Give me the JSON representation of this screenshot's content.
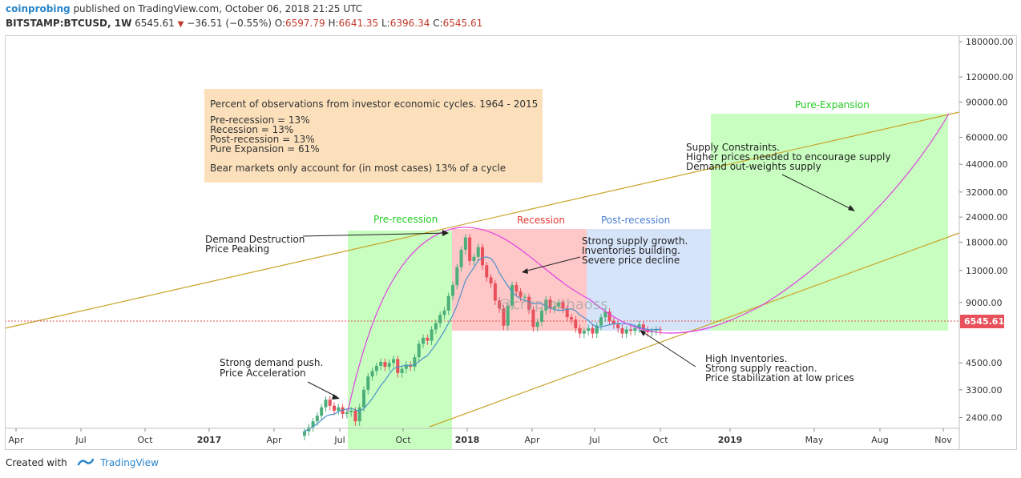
{
  "header": {
    "author": "coinprobing",
    "published": "published on TradingView.com, October 06, 2018 21:25 UTC",
    "symbol": "BITSTAMP:BTCUSD, 1W",
    "last": "6545.61",
    "change": "−36.51 (−0.55%)",
    "o_label": "O:",
    "o": "6597.79",
    "h_label": "H:",
    "h": "6641.35",
    "l_label": "L:",
    "l": "6396.34",
    "c_label": "C:",
    "c": "6545.61"
  },
  "footer": {
    "created": "Created with",
    "brand": "TradingView"
  },
  "colors": {
    "up": "#4caf7a",
    "down": "#e8505b",
    "ma": "#4a90c8",
    "curve": "#e040e0",
    "channel": "#c9a227",
    "green_zone": "#c8ffc0",
    "red_zone": "#ffc8c8",
    "blue_zone": "#d6e4fa",
    "note": "#fbe0bb",
    "price_line": "#e05050"
  },
  "chart_data": {
    "type": "candlestick",
    "scale": "log",
    "y_ticks": [
      2400,
      3300,
      4500,
      6545.61,
      9000,
      13000,
      18000,
      24000,
      32000,
      44000,
      60000,
      90000,
      120000,
      180000
    ],
    "y_tick_labels": [
      "2400.00",
      "3300.00",
      "4500.00",
      "6545.61",
      "9000.00",
      "13000.00",
      "18000.00",
      "24000.00",
      "32000.00",
      "44000.00",
      "60000.00",
      "90000.00",
      "120000.00",
      "180000.00"
    ],
    "x_labels": [
      "Apr",
      "Jul",
      "Oct",
      "2017",
      "Apr",
      "Jul",
      "Oct",
      "2018",
      "Apr",
      "Jul",
      "Oct",
      "2019",
      "May",
      "Aug",
      "Nov"
    ],
    "last_price_label": "6545.61",
    "watermark": "@cryptochaoss",
    "weekly_closes": [
      2050,
      2150,
      2300,
      2450,
      2700,
      2950,
      2750,
      2600,
      2700,
      2500,
      2550,
      2600,
      2300,
      2700,
      3300,
      3850,
      4100,
      4350,
      4550,
      4300,
      4500,
      4700,
      4000,
      4200,
      4400,
      4300,
      4800,
      5600,
      6000,
      5800,
      6600,
      7100,
      7800,
      8200,
      9700,
      11000,
      13500,
      16500,
      19000,
      14500,
      15200,
      17000,
      13800,
      12000,
      11200,
      9200,
      8400,
      6900,
      8700,
      11000,
      10200,
      9600,
      9600,
      8300,
      6800,
      7200,
      8200,
      9300,
      8400,
      8600,
      9000,
      8400,
      7600,
      7400,
      6700,
      6300,
      6500,
      6700,
      6300,
      6900,
      7600,
      8100,
      7300,
      7000,
      6700,
      6300,
      6600,
      6500,
      6700,
      7000,
      6600,
      6400,
      6500,
      6600,
      6545
    ],
    "zones": [
      "Pre-recession",
      "Recession",
      "Post-recession",
      "Pure-Expansion"
    ],
    "info_box": {
      "title": "Percent of observations from investor economic cycles. 1964 - 2015",
      "lines": [
        "Pre-recession = 13%",
        "Recession = 13%",
        "Post-recession = 13%",
        "Pure Expansion = 61%"
      ],
      "footer": "Bear markets only account for (in most cases) 13% of a cycle"
    },
    "annotations": {
      "demand_destruction": [
        "Demand Destruction",
        "Price Peaking"
      ],
      "strong_demand": [
        "Strong demand push.",
        "Price Acceleration"
      ],
      "strong_supply": [
        "Strong supply growth.",
        "Inventories building.",
        "Severe price decline"
      ],
      "supply_constraints": [
        "Supply Constraints.",
        "Higher prices needed to encourage supply",
        "Demand out-weights supply"
      ],
      "high_inventories": [
        "High Inventories.",
        "Strong supply reaction.",
        "Price stabilization at low prices"
      ]
    }
  }
}
